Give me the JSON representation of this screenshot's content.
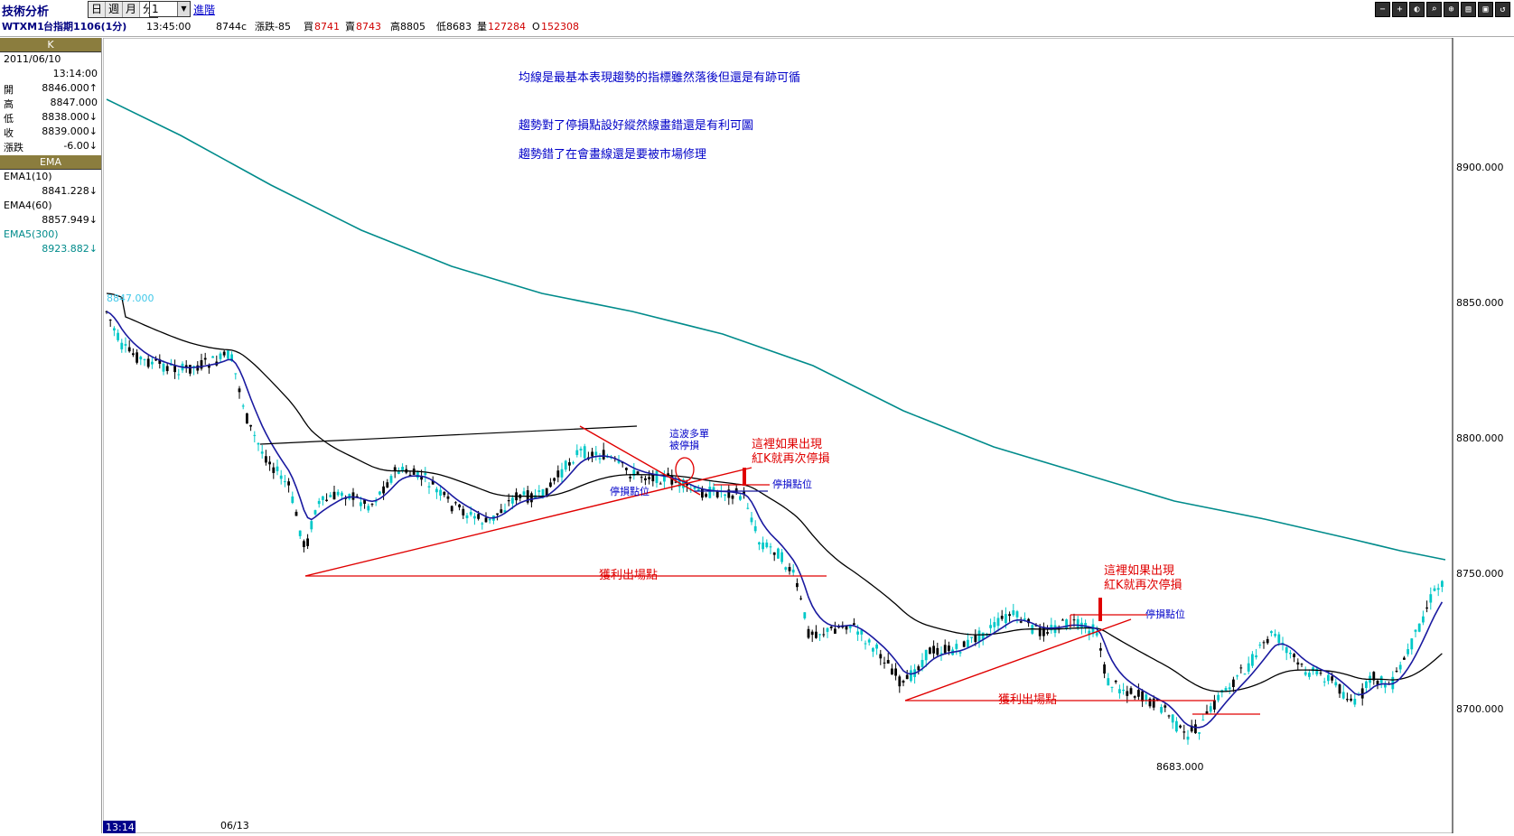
{
  "app": {
    "title": "技術分析"
  },
  "toolbar": {
    "tabs": [
      {
        "label": "日"
      },
      {
        "label": "週"
      },
      {
        "label": "月"
      },
      {
        "label": "分"
      }
    ],
    "interval": "1",
    "advanced_label": "進階",
    "window_buttons": [
      "−",
      "+",
      "◐",
      "⌕",
      "⊕",
      "▤",
      "▣",
      "↺"
    ]
  },
  "quote": {
    "symbol": "WTXM1",
    "name": "台指期1106(1分)",
    "time": "13:45:00",
    "last": "8744c",
    "change": "漲跌-85",
    "bid_label": "買",
    "bid": "8741",
    "ask_label": "賣",
    "ask": "8743",
    "high": "高8805",
    "low": "低8683",
    "volume_label": "量",
    "volume": "127284",
    "oi_label": "O",
    "oi": "152308"
  },
  "panel": {
    "k_header": "K",
    "date": "2011/06/10",
    "time": "13:14:00",
    "open_label": "開",
    "open": "8846.000↑",
    "high_label": "高",
    "high": "8847.000",
    "low_label": "低",
    "low": "8838.000↓",
    "close_label": "收",
    "close": "8839.000↓",
    "change_label": "漲跌",
    "change": "-6.00↓",
    "ema_header": "EMA",
    "ema1_label": "EMA1(10)",
    "ema1": "8841.228↓",
    "ema4_label": "EMA4(60)",
    "ema4": "8857.949↓",
    "ema5_label": "EMA5(300)",
    "ema5": "8923.882↓"
  },
  "chart": {
    "yaxis_labels": [
      "8900.000",
      "8850.000",
      "8800.000",
      "8750.000",
      "8700.000"
    ],
    "xaxis_labels": [
      "13:14",
      "06/13"
    ],
    "top_marker": "8847.000",
    "low_marker": "8683.000",
    "notes": [
      "均線是最基本表現趨勢的指標雖然落後但還是有跡可循",
      "趨勢對了停損點設好縱然線畫錯還是有利可圖",
      "趨勢錯了在會畫線還是要被市場修理"
    ],
    "ann_stopped": [
      "這波多單",
      "被停損"
    ],
    "ann_redk1": [
      "這裡如果出現",
      "紅K就再次停損"
    ],
    "ann_redk2": [
      "這裡如果出現",
      "紅K就再次停損"
    ],
    "stop_label_1": "停損點位",
    "stop_label_2": "停損點位",
    "stop_label_3": "停損點位",
    "exit_label_1": "獲利出場點",
    "exit_label_2": "獲利出場點",
    "colors": {
      "ema10": "#1a1aa0",
      "ema60": "#000000",
      "ema300": "#008b8b",
      "up": "#00c8c8",
      "down": "#000000",
      "annotation": "#e00000",
      "note": "#0000c8"
    }
  }
}
